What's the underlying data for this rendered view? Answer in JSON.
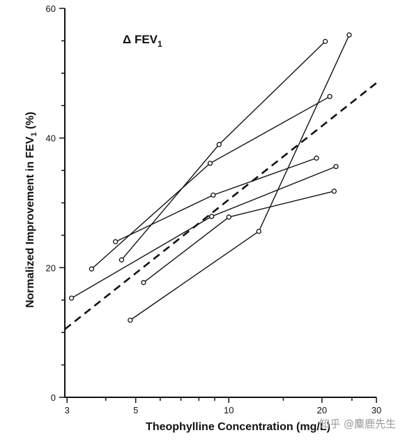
{
  "chart_data": {
    "type": "line",
    "title": "Δ FEV",
    "title_subscript": "1",
    "xlabel": "Theophylline Concentration (mg/L)",
    "ylabel": "Normalized Improvement in FEV",
    "ylabel_subscript": "1",
    "ylabel_suffix": " (%)",
    "x_scale": "log",
    "xlim": [
      2.95,
      30
    ],
    "ylim": [
      0,
      60
    ],
    "x_ticks": [
      3,
      5,
      10,
      20,
      30
    ],
    "y_ticks": [
      0,
      20,
      40,
      60
    ],
    "x_tick_labels": [
      "3",
      "5",
      "10",
      "20",
      "30"
    ],
    "y_tick_labels": [
      "0",
      "20",
      "40",
      "60"
    ],
    "grid": false,
    "series": [
      {
        "style": "solid",
        "marker": "open-circle",
        "points": [
          [
            4.5,
            21.2
          ],
          [
            9.3,
            39.0
          ],
          [
            20.5,
            54.9
          ]
        ]
      },
      {
        "style": "solid",
        "marker": "open-circle",
        "points": [
          [
            4.8,
            11.9
          ],
          [
            12.5,
            25.6
          ],
          [
            24.5,
            55.9
          ]
        ]
      },
      {
        "style": "solid",
        "marker": "open-circle",
        "points": [
          [
            3.6,
            19.8
          ],
          [
            8.7,
            36.1
          ],
          [
            21.2,
            46.4
          ]
        ]
      },
      {
        "style": "solid",
        "marker": "open-circle",
        "points": [
          [
            4.3,
            24.0
          ],
          [
            8.9,
            31.2
          ],
          [
            19.2,
            36.9
          ]
        ]
      },
      {
        "style": "solid",
        "marker": "open-circle",
        "points": [
          [
            3.1,
            15.3
          ],
          [
            8.8,
            27.9
          ],
          [
            22.2,
            35.6
          ]
        ]
      },
      {
        "style": "solid",
        "marker": "open-circle",
        "points": [
          [
            5.3,
            17.7
          ],
          [
            10.0,
            27.8
          ],
          [
            21.9,
            31.8
          ]
        ]
      },
      {
        "style": "dashed",
        "marker": "none",
        "points": [
          [
            2.95,
            10.5
          ],
          [
            30,
            48.5
          ]
        ]
      }
    ]
  },
  "watermark": "知乎 @麋鹿先生"
}
